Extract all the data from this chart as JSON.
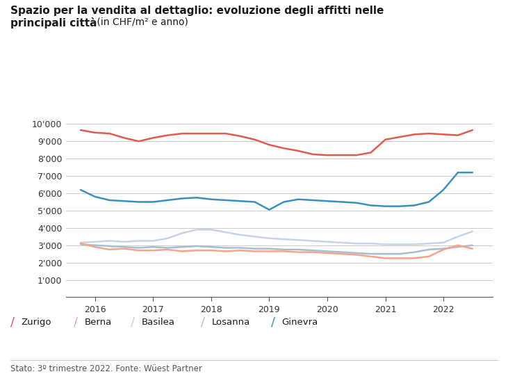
{
  "title_bold": "Spazio per la vendita al dettaglio: evoluzione degli affitti nelle",
  "title_bold2": "principali città",
  "title_normal": " (in CHF/m² e anno)",
  "footnote": "Stato: 3º trimestre 2022. Fonte: Wüest Partner",
  "ylim": [
    0,
    11000
  ],
  "yticks": [
    0,
    1000,
    2000,
    3000,
    4000,
    5000,
    6000,
    7000,
    8000,
    9000,
    10000
  ],
  "ytick_labels": [
    "",
    "1'000",
    "2'000",
    "3'000",
    "4'000",
    "5'000",
    "6'000",
    "7'000",
    "8'000",
    "9'000",
    "10'000"
  ],
  "xlim": [
    2015.5,
    2022.85
  ],
  "xticks": [
    2016,
    2017,
    2018,
    2019,
    2020,
    2021,
    2022
  ],
  "legend": [
    "Zurigo",
    "Berna",
    "Basilea",
    "Losanna",
    "Ginevra"
  ],
  "colors": {
    "Zurigo": "#e05a4e",
    "Berna": "#f4a58a",
    "Basilea": "#c6d4e8",
    "Losanna": "#a8bdd4",
    "Ginevra": "#3a8fbf"
  },
  "series": {
    "Zurigo": {
      "x": [
        2015.75,
        2016.0,
        2016.25,
        2016.5,
        2016.75,
        2017.0,
        2017.25,
        2017.5,
        2017.75,
        2018.0,
        2018.25,
        2018.5,
        2018.75,
        2019.0,
        2019.25,
        2019.5,
        2019.75,
        2020.0,
        2020.25,
        2020.5,
        2020.75,
        2021.0,
        2021.25,
        2021.5,
        2021.75,
        2022.0,
        2022.25,
        2022.5
      ],
      "y": [
        9650,
        9500,
        9450,
        9200,
        9000,
        9200,
        9350,
        9450,
        9450,
        9450,
        9450,
        9300,
        9100,
        8800,
        8600,
        8450,
        8250,
        8200,
        8200,
        8200,
        8350,
        9100,
        9250,
        9400,
        9450,
        9400,
        9350,
        9650
      ]
    },
    "Ginevra": {
      "x": [
        2015.75,
        2016.0,
        2016.25,
        2016.5,
        2016.75,
        2017.0,
        2017.25,
        2017.5,
        2017.75,
        2018.0,
        2018.25,
        2018.5,
        2018.75,
        2019.0,
        2019.25,
        2019.5,
        2019.75,
        2020.0,
        2020.25,
        2020.5,
        2020.75,
        2021.0,
        2021.25,
        2021.5,
        2021.75,
        2022.0,
        2022.25,
        2022.5
      ],
      "y": [
        6200,
        5800,
        5600,
        5550,
        5500,
        5500,
        5600,
        5700,
        5750,
        5650,
        5600,
        5550,
        5500,
        5050,
        5500,
        5650,
        5600,
        5550,
        5500,
        5450,
        5300,
        5250,
        5250,
        5300,
        5500,
        6200,
        7200,
        7200
      ]
    },
    "Basilea": {
      "x": [
        2015.75,
        2016.0,
        2016.25,
        2016.5,
        2016.75,
        2017.0,
        2017.25,
        2017.5,
        2017.75,
        2018.0,
        2018.25,
        2018.5,
        2018.75,
        2019.0,
        2019.25,
        2019.5,
        2019.75,
        2020.0,
        2020.25,
        2020.5,
        2020.75,
        2021.0,
        2021.25,
        2021.5,
        2021.75,
        2022.0,
        2022.25,
        2022.5
      ],
      "y": [
        3150,
        3200,
        3250,
        3200,
        3250,
        3250,
        3400,
        3700,
        3900,
        3900,
        3750,
        3600,
        3500,
        3400,
        3350,
        3300,
        3250,
        3200,
        3150,
        3100,
        3100,
        3050,
        3050,
        3050,
        3100,
        3150,
        3500,
        3800
      ]
    },
    "Losanna": {
      "x": [
        2015.75,
        2016.0,
        2016.25,
        2016.5,
        2016.75,
        2017.0,
        2017.25,
        2017.5,
        2017.75,
        2018.0,
        2018.25,
        2018.5,
        2018.75,
        2019.0,
        2019.25,
        2019.5,
        2019.75,
        2020.0,
        2020.25,
        2020.5,
        2020.75,
        2021.0,
        2021.25,
        2021.5,
        2021.75,
        2022.0,
        2022.25,
        2022.5
      ],
      "y": [
        3050,
        3000,
        2950,
        2900,
        2850,
        2900,
        2850,
        2900,
        2950,
        2900,
        2850,
        2850,
        2800,
        2800,
        2750,
        2750,
        2700,
        2650,
        2600,
        2550,
        2500,
        2500,
        2500,
        2600,
        2750,
        2800,
        2900,
        3000
      ]
    },
    "Berna": {
      "x": [
        2015.75,
        2016.0,
        2016.25,
        2016.5,
        2016.75,
        2017.0,
        2017.25,
        2017.5,
        2017.75,
        2018.0,
        2018.25,
        2018.5,
        2018.75,
        2019.0,
        2019.25,
        2019.5,
        2019.75,
        2020.0,
        2020.25,
        2020.5,
        2020.75,
        2021.0,
        2021.25,
        2021.5,
        2021.75,
        2022.0,
        2022.25,
        2022.5
      ],
      "y": [
        3100,
        2900,
        2750,
        2800,
        2700,
        2700,
        2750,
        2650,
        2700,
        2700,
        2650,
        2700,
        2650,
        2650,
        2650,
        2600,
        2600,
        2550,
        2500,
        2450,
        2350,
        2250,
        2250,
        2250,
        2350,
        2750,
        3000,
        2800
      ]
    }
  },
  "line_width": 1.8,
  "bg_color": "#ffffff",
  "grid_color": "#cccccc"
}
